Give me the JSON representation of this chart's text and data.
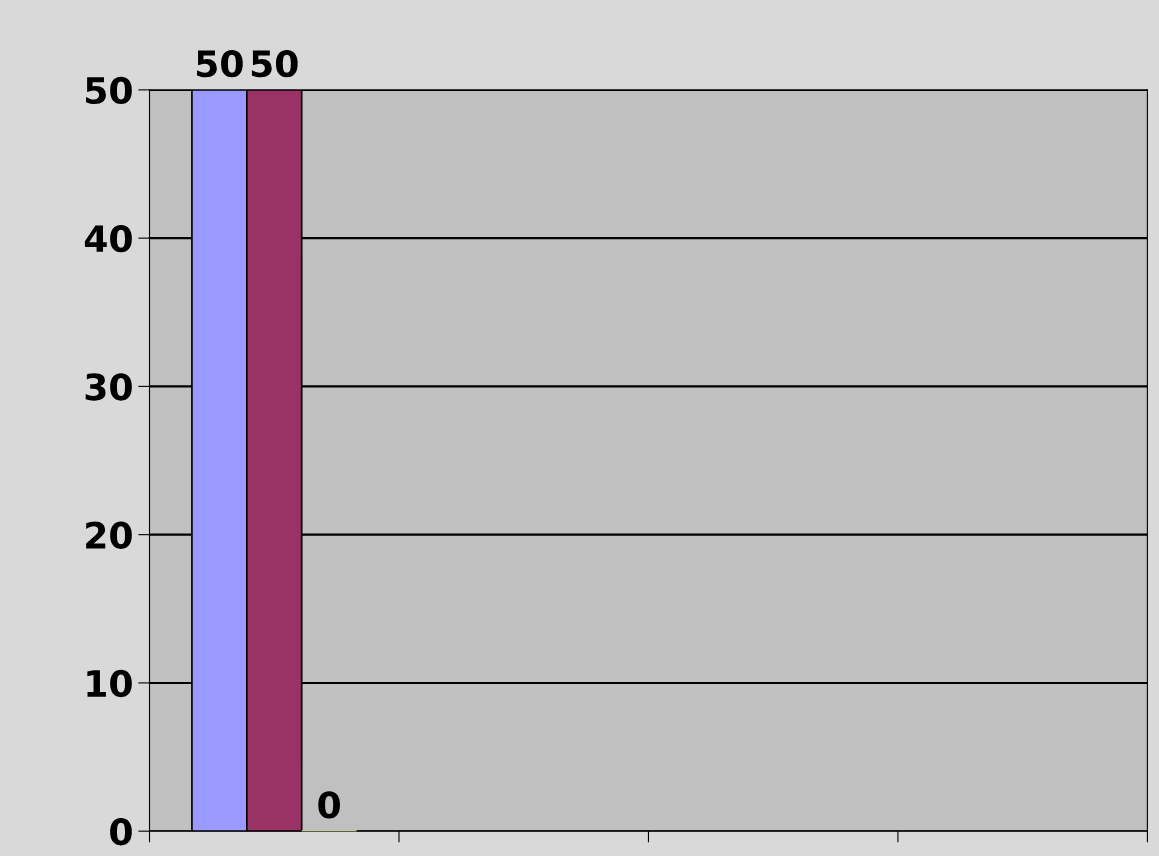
{
  "chart_data": {
    "type": "bar",
    "categories": [
      null,
      null,
      null,
      null
    ],
    "series": [
      {
        "color": "#9999ff",
        "values": [
          50,
          null,
          null,
          null
        ]
      },
      {
        "color": "#993366",
        "values": [
          50,
          null,
          null,
          null
        ]
      },
      {
        "color": "#ffffcc",
        "values": [
          0,
          null,
          null,
          null
        ]
      }
    ],
    "ylim": [
      0,
      50
    ],
    "yticks": [
      0,
      10,
      20,
      30,
      40,
      50
    ],
    "grid": "y",
    "data_labels": true,
    "tick_labels": "y"
  }
}
